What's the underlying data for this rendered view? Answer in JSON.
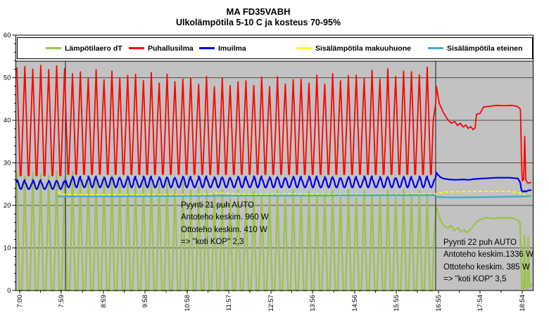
{
  "chart_data": {
    "type": "line",
    "title": "MA FD35VABH",
    "subtitle": "Ulkolämpötila 5-10 C ja kosteus 70-95%",
    "legend_position": "top",
    "grid": true,
    "plot_bg_color": "#c2c2c2",
    "grid_color": "#4d4d4d",
    "axis_color": "#000000",
    "x_axis": {
      "unit": "time of day",
      "tick_labels": [
        "7:00",
        "7:59",
        "8:59",
        "9:58",
        "10:58",
        "11:57",
        "12:57",
        "13:56",
        "14:56",
        "15:55",
        "16:55",
        "17:54",
        "18:54"
      ],
      "tick_minutes": [
        0,
        59,
        119,
        178,
        238,
        297,
        357,
        416,
        476,
        535,
        595,
        654,
        714
      ],
      "minor_ticks": "midpoints"
    },
    "y_axis": {
      "min": 0,
      "max": 60,
      "major_step": 10,
      "minor_step": 2
    },
    "phase_boundaries_min": [
      65,
      591
    ],
    "annotations": [
      {
        "lines": [
          "Pyynti 21 puh AUTO",
          "Antoteho keskim. 960 W",
          "Ottoteho keskim. 410 W",
          "=> \"koti KOP\" 2,3"
        ]
      },
      {
        "lines": [
          "Pyynti 22 puh AUTO",
          "Antoteho keskim.1336 W",
          "Ottoteho keskim. 385 W",
          "=> \"koti KOP\" 3,5"
        ]
      }
    ],
    "series": [
      {
        "name": "Lämpötilaero dT",
        "slug": "lampotilaero-dt",
        "color": "#9cc34f",
        "width": 2.4,
        "draw_order": 1,
        "segments": [
          {
            "kind": "cycles",
            "t0": -5,
            "t1": 65,
            "period": 11.3,
            "peakT": -4,
            "min": 0,
            "max": 27.3,
            "fall": 0.34,
            "flat": 0.3,
            "jitter": 0.8,
            "jphase": 1.3
          },
          {
            "kind": "cycles",
            "t0": 65,
            "t1": 590,
            "period": 11.2,
            "peakT": 75,
            "min": 0,
            "max": [
              [
                65,
                27
              ],
              [
                200,
                25.5
              ],
              [
                300,
                22.6
              ],
              [
                590,
                22.8
              ]
            ],
            "fall": 0.34,
            "flat": 0.3,
            "jitter": 1.0,
            "jphase": 1.3
          },
          {
            "kind": "points",
            "pts": [
              [
                591.5,
                20.2
              ],
              [
                594,
                18.3
              ],
              [
                598,
                16.4
              ],
              [
                603,
                15.1
              ],
              [
                608,
                14.7
              ],
              [
                613,
                15.2
              ],
              [
                618,
                14.1
              ],
              [
                623,
                14.8
              ],
              [
                627,
                13.7
              ],
              [
                631,
                14.3
              ],
              [
                635,
                13.6
              ],
              [
                639,
                14.2
              ],
              [
                643,
                14.8
              ],
              [
                648,
                16.0
              ],
              [
                653,
                16.5
              ],
              [
                658,
                16.9
              ],
              [
                665,
                17.1
              ],
              [
                673,
                16.9
              ],
              [
                681,
                17.1
              ],
              [
                689,
                17.0
              ],
              [
                697,
                17.1
              ],
              [
                704,
                16.8
              ],
              [
                709,
                16.4
              ],
              [
                711,
                15.8
              ],
              [
                712.5,
                6
              ],
              [
                713.5,
                0.6
              ],
              [
                716,
                0.4
              ],
              [
                717.2,
                12.9
              ],
              [
                718.5,
                0.7
              ],
              [
                721,
                0.4
              ],
              [
                722.5,
                12.4
              ],
              [
                724,
                0.6
              ],
              [
                727,
                1.6
              ]
            ]
          }
        ]
      },
      {
        "name": "Puhallusilma",
        "slug": "puhallusilma",
        "color": "#ff0000",
        "width": 1.8,
        "draw_order": 2,
        "segments": [
          {
            "kind": "cycles",
            "t0": -5,
            "t1": 65,
            "period": 11.3,
            "peakT": -4,
            "min": 27,
            "max": 52.4,
            "fall": 0.42,
            "flat": 0.1,
            "jitter": 0.5,
            "jphase": 0
          },
          {
            "kind": "cycles",
            "t0": 65,
            "t1": 590,
            "period": 11.2,
            "peakT": 75,
            "min": 27.3,
            "max": [
              [
                65,
                51
              ],
              [
                150,
                50.5
              ],
              [
                300,
                48.8
              ],
              [
                420,
                49.5
              ],
              [
                520,
                51
              ],
              [
                590,
                51.5
              ]
            ],
            "fall": 0.42,
            "flat": 0.1,
            "jitter": 1.2,
            "jphase": 0
          },
          {
            "kind": "points",
            "pts": [
              [
                591,
                44
              ],
              [
                592,
                48
              ],
              [
                596,
                44
              ],
              [
                602,
                41.8
              ],
              [
                608,
                40.2
              ],
              [
                613,
                39.3
              ],
              [
                618,
                39.7
              ],
              [
                622,
                38.8
              ],
              [
                626,
                39.3
              ],
              [
                630,
                38.4
              ],
              [
                634,
                38.9
              ],
              [
                637,
                38.1
              ],
              [
                641,
                38.5
              ],
              [
                644,
                37.8
              ],
              [
                647,
                38.2
              ],
              [
                649,
                41.4
              ],
              [
                654,
                41.6
              ],
              [
                659,
                43.1
              ],
              [
                668,
                43.3
              ],
              [
                678,
                43.5
              ],
              [
                688,
                43.4
              ],
              [
                698,
                43.5
              ],
              [
                706,
                43.3
              ],
              [
                710,
                42.9
              ],
              [
                711.5,
                42.4
              ],
              [
                713,
                30
              ],
              [
                714,
                25.8
              ],
              [
                716,
                26.1
              ],
              [
                717.5,
                36.2
              ],
              [
                719,
                26
              ],
              [
                722,
                25.2
              ],
              [
                727,
                25.4
              ]
            ]
          }
        ]
      },
      {
        "name": "Imuilma",
        "slug": "imuilma",
        "color": "#0000ee",
        "width": 2.2,
        "draw_order": 3,
        "segments": [
          {
            "kind": "cycles",
            "shape": "sine",
            "t0": -5,
            "t1": 65,
            "period": 11.3,
            "peakT": -4,
            "min": 23.8,
            "max": 25.7,
            "jitter": 0.3,
            "jphase": 2.1
          },
          {
            "kind": "cycles",
            "shape": "sine",
            "t0": 65,
            "t1": 590,
            "period": 11.2,
            "peakT": 75,
            "min": 24.2,
            "max": 26.5,
            "jitter": 0.35,
            "jphase": 2.1
          },
          {
            "kind": "points",
            "pts": [
              [
                590.5,
                26.2
              ],
              [
                592,
                27.7
              ],
              [
                594,
                27.2
              ],
              [
                598,
                26.6
              ],
              [
                602,
                26.3
              ],
              [
                610,
                26.1
              ],
              [
                620,
                26.0
              ],
              [
                630,
                26.1
              ],
              [
                638,
                26.0
              ],
              [
                646,
                26.2
              ],
              [
                656,
                26.3
              ],
              [
                666,
                26.4
              ],
              [
                676,
                26.5
              ],
              [
                686,
                26.5
              ],
              [
                696,
                26.5
              ],
              [
                703,
                26.4
              ],
              [
                708,
                26.3
              ],
              [
                711,
                25.4
              ],
              [
                713,
                23.5
              ],
              [
                715,
                23.2
              ],
              [
                717,
                23.4
              ],
              [
                719,
                23.2
              ],
              [
                722,
                23.5
              ],
              [
                727,
                23.6
              ]
            ]
          }
        ]
      },
      {
        "name": "Sisälämpötila makuuhuone",
        "slug": "sisalampotila-makuuhuone",
        "color": "#ffff00",
        "width": 1.8,
        "dash": "5,3",
        "draw_order": 4,
        "segments": [
          {
            "kind": "points",
            "pts": [
              [
                54,
                23.3
              ],
              [
                57,
                22.8
              ],
              [
                62,
                22.6
              ],
              [
                100,
                22.5
              ],
              [
                150,
                22.5
              ],
              [
                200,
                22.5
              ],
              [
                250,
                22.5
              ],
              [
                285,
                22.9
              ],
              [
                320,
                22.6
              ],
              [
                380,
                22.7
              ],
              [
                440,
                22.6
              ],
              [
                500,
                22.6
              ],
              [
                560,
                22.7
              ],
              [
                589,
                22.7
              ],
              [
                592,
                22.7
              ],
              [
                598,
                23.0
              ],
              [
                606,
                23.15
              ],
              [
                620,
                23.2
              ],
              [
                640,
                23.25
              ],
              [
                660,
                23.3
              ],
              [
                680,
                23.3
              ],
              [
                696,
                23.25
              ],
              [
                705,
                23.1
              ],
              [
                711,
                22.9
              ],
              [
                716,
                22.5
              ],
              [
                720,
                22.35
              ],
              [
                727,
                22.3
              ]
            ]
          }
        ]
      },
      {
        "name": "Sisälämpötila eteinen",
        "slug": "sisalampotila-eteinen",
        "color": "#44aac8",
        "width": 2.4,
        "draw_order": 5,
        "segments": [
          {
            "kind": "points",
            "pts": [
              [
                54,
                22.1
              ],
              [
                100,
                22.1
              ],
              [
                160,
                22.15
              ],
              [
                220,
                22.2
              ],
              [
                280,
                22.25
              ],
              [
                340,
                22.3
              ],
              [
                400,
                22.3
              ],
              [
                460,
                22.35
              ],
              [
                520,
                22.4
              ],
              [
                589,
                22.4
              ],
              [
                592,
                22.0
              ],
              [
                605,
                21.9
              ],
              [
                620,
                21.85
              ],
              [
                640,
                21.9
              ],
              [
                660,
                21.95
              ],
              [
                680,
                22.0
              ],
              [
                700,
                22.05
              ],
              [
                712,
                22.1
              ],
              [
                727,
                22.2
              ]
            ]
          }
        ]
      }
    ]
  }
}
